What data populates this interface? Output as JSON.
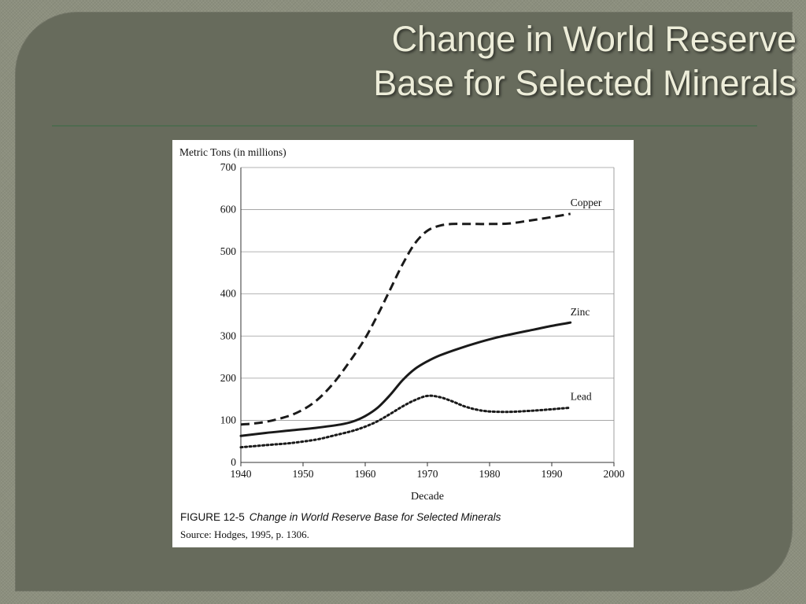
{
  "slide": {
    "title_line1": "Change in World Reserve",
    "title_line2": "Base for Selected Minerals"
  },
  "figure": {
    "number": "FIGURE 12-5",
    "caption": "Change in World Reserve Base for Selected Minerals",
    "source": "Source: Hodges, 1995, p. 1306."
  },
  "colors": {
    "background": "#8c8f7e",
    "panel": "#676b5c",
    "title": "#ededd9",
    "rule": "#4f6b50",
    "line": "#1a1a1a"
  },
  "chart_data": {
    "type": "line",
    "title": "",
    "xlabel": "Decade",
    "ylabel": "Metric Tons (in millions)",
    "xlim": [
      1940,
      2000
    ],
    "ylim": [
      0,
      700
    ],
    "xticks": [
      1940,
      1950,
      1960,
      1970,
      1980,
      1990,
      2000
    ],
    "yticks": [
      0,
      100,
      200,
      300,
      400,
      500,
      600,
      700
    ],
    "grid": "horizontal",
    "legend": "inline labels at line ends",
    "series": [
      {
        "name": "Copper",
        "style": "dashed",
        "x": [
          1940,
          1943,
          1946,
          1949,
          1952,
          1955,
          1958,
          1960,
          1962,
          1964,
          1966,
          1968,
          1970,
          1972,
          1974,
          1976,
          1978,
          1980,
          1983,
          1986,
          1989,
          1993
        ],
        "y": [
          90,
          94,
          103,
          118,
          145,
          190,
          250,
          295,
          350,
          410,
          470,
          520,
          550,
          562,
          566,
          566,
          566,
          566,
          567,
          573,
          580,
          590
        ]
      },
      {
        "name": "Zinc",
        "style": "solid",
        "x": [
          1940,
          1944,
          1948,
          1952,
          1956,
          1958,
          1960,
          1962,
          1964,
          1966,
          1968,
          1970,
          1972,
          1975,
          1978,
          1981,
          1984,
          1987,
          1990,
          1993
        ],
        "y": [
          63,
          70,
          76,
          82,
          90,
          97,
          110,
          130,
          160,
          195,
          222,
          240,
          254,
          270,
          284,
          296,
          306,
          315,
          324,
          332
        ]
      },
      {
        "name": "Lead",
        "style": "dotted",
        "x": [
          1940,
          1944,
          1948,
          1952,
          1955,
          1958,
          1960,
          1962,
          1964,
          1966,
          1968,
          1970,
          1972,
          1974,
          1976,
          1978,
          1980,
          1983,
          1986,
          1989,
          1993
        ],
        "y": [
          36,
          41,
          46,
          54,
          64,
          75,
          85,
          98,
          115,
          133,
          148,
          158,
          155,
          145,
          133,
          125,
          121,
          120,
          122,
          125,
          130
        ]
      }
    ]
  }
}
